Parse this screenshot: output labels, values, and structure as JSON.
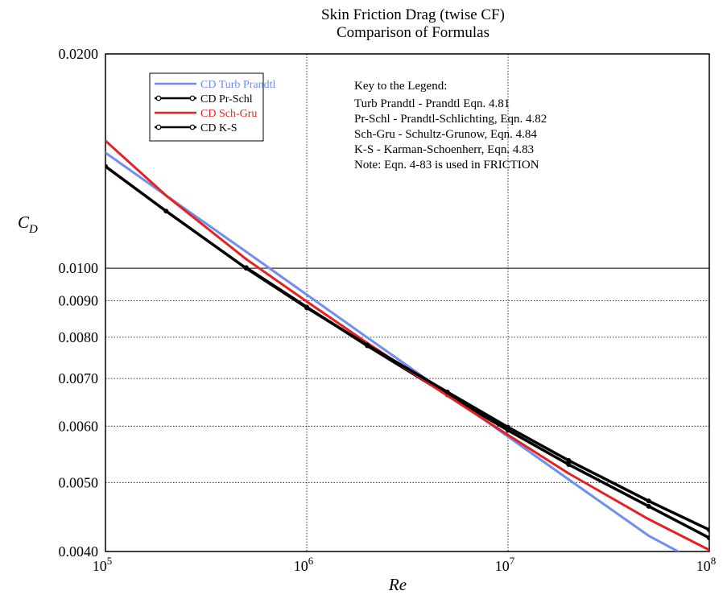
{
  "chart_data": {
    "type": "line",
    "title": "Skin Friction Drag (twise CF)",
    "subtitle": "Comparison of Formulas",
    "xlabel": "Re",
    "ylabel": "C",
    "ylabel_sub": "D",
    "x_scale": "log",
    "y_scale": "log",
    "xlim": [
      100000,
      100000000
    ],
    "ylim": [
      0.004,
      0.02
    ],
    "x_ticks": [
      {
        "value": 100000,
        "base": "10",
        "exp": "5"
      },
      {
        "value": 1000000,
        "base": "10",
        "exp": "6"
      },
      {
        "value": 10000000,
        "base": "10",
        "exp": "7"
      },
      {
        "value": 100000000,
        "base": "10",
        "exp": "8"
      }
    ],
    "y_ticks": [
      {
        "value": 0.004,
        "label": "0.0040"
      },
      {
        "value": 0.005,
        "label": "0.0050"
      },
      {
        "value": 0.006,
        "label": "0.0060"
      },
      {
        "value": 0.007,
        "label": "0.0070"
      },
      {
        "value": 0.008,
        "label": "0.0080"
      },
      {
        "value": 0.009,
        "label": "0.0090"
      },
      {
        "value": 0.01,
        "label": "0.0100"
      },
      {
        "value": 0.02,
        "label": "0.0200"
      }
    ],
    "grid": true,
    "legend_position": "top-left",
    "series": [
      {
        "name": "CD Turb Prandtl",
        "color": "#6f8ef0",
        "markers": false,
        "x": [
          100000,
          200000,
          500000,
          1000000,
          2000000,
          5000000,
          10000000,
          20000000,
          50000000,
          70000000
        ],
        "y": [
          0.01453,
          0.01265,
          0.01055,
          0.00918,
          0.00799,
          0.00666,
          0.0058,
          0.00505,
          0.00421,
          0.004
        ]
      },
      {
        "name": "CD Pr-Schl",
        "color": "#000000",
        "markers": true,
        "x": [
          500000,
          1000000,
          2000000,
          5000000,
          10000000,
          20000000,
          50000000,
          100000000
        ],
        "y": [
          0.01002,
          0.00882,
          0.00778,
          0.00664,
          0.00592,
          0.0053,
          0.00463,
          0.00418
        ]
      },
      {
        "name": "CD Sch-Gru",
        "color": "#e52222",
        "markers": false,
        "x": [
          100000,
          200000,
          500000,
          1000000,
          2000000,
          5000000,
          10000000,
          20000000,
          50000000,
          100000000
        ],
        "y": [
          0.0151,
          0.01265,
          0.0103,
          0.00898,
          0.00785,
          0.00662,
          0.00583,
          0.00515,
          0.00444,
          0.00402
        ]
      },
      {
        "name": "CD K-S",
        "color": "#000000",
        "markers": true,
        "x": [
          100000,
          200000,
          500000,
          1000000,
          2000000,
          5000000,
          10000000,
          20000000,
          50000000,
          100000000
        ],
        "y": [
          0.0139,
          0.01203,
          0.01,
          0.0088,
          0.0078,
          0.0067,
          0.00598,
          0.00537,
          0.00471,
          0.00429
        ]
      }
    ],
    "annotation": {
      "title": "Key to the Legend:",
      "lines": [
        "Turb Prandtl - Prandtl Eqn. 4.81",
        "Pr-Schl - Prandtl-Schlichting, Eqn. 4.82",
        "Sch-Gru - Schultz-Grunow, Eqn. 4.84",
        "K-S - Karman-Schoenherr, Eqn. 4.83",
        "Note: Eqn. 4-83 is used in FRICTION"
      ]
    }
  }
}
